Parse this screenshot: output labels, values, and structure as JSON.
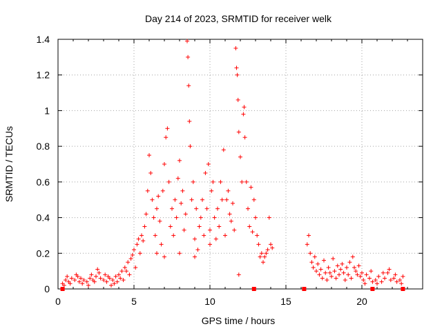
{
  "chart_data": {
    "type": "scatter",
    "title": "Day 214 of 2023, SRMTID for receiver welk",
    "xlabel": "GPS time / hours",
    "ylabel": "SRMTID / TECUs",
    "xlim": [
      0,
      24
    ],
    "ylim": [
      0,
      1.4
    ],
    "xticks": [
      0,
      5,
      10,
      15,
      20
    ],
    "xtick_labels": [
      "0",
      "5",
      "10",
      "15",
      "20"
    ],
    "yticks": [
      0,
      0.2,
      0.4,
      0.6,
      0.8,
      1.0,
      1.2,
      1.4
    ],
    "ytick_labels": [
      "0",
      "0.2",
      "0.4",
      "0.6",
      "0.8",
      "1",
      "1.2",
      "1.4"
    ],
    "grid": true,
    "marker": "+",
    "colors": {
      "points": "#ff0000",
      "grid": "#a0a0a0",
      "axes": "#000000"
    },
    "series": [
      {
        "name": "SRMTID",
        "points": [
          [
            0.3,
            0.03
          ],
          [
            0.5,
            0.05
          ],
          [
            0.7,
            0.04
          ],
          [
            0.9,
            0.06
          ],
          [
            1.1,
            0.05
          ],
          [
            1.3,
            0.07
          ],
          [
            1.5,
            0.06
          ],
          [
            1.7,
            0.05
          ],
          [
            1.9,
            0.04
          ],
          [
            2.1,
            0.06
          ],
          [
            2.3,
            0.05
          ],
          [
            2.5,
            0.07
          ],
          [
            2.6,
            0.11
          ],
          [
            2.7,
            0.09
          ],
          [
            2.8,
            0.06
          ],
          [
            3.0,
            0.05
          ],
          [
            3.2,
            0.04
          ],
          [
            3.4,
            0.06
          ],
          [
            3.6,
            0.05
          ],
          [
            3.8,
            0.07
          ],
          [
            4.0,
            0.08
          ],
          [
            4.2,
            0.1
          ],
          [
            4.4,
            0.12
          ],
          [
            4.6,
            0.15
          ],
          [
            4.8,
            0.17
          ],
          [
            4.9,
            0.19
          ],
          [
            5.0,
            0.22
          ],
          [
            5.2,
            0.25
          ],
          [
            5.3,
            0.28
          ],
          [
            5.5,
            0.3
          ],
          [
            5.7,
            0.35
          ],
          [
            5.8,
            0.42
          ],
          [
            5.9,
            0.55
          ],
          [
            6.0,
            0.75
          ],
          [
            6.1,
            0.65
          ],
          [
            6.2,
            0.5
          ],
          [
            6.3,
            0.4
          ],
          [
            6.5,
            0.45
          ],
          [
            6.7,
            0.38
          ],
          [
            6.9,
            0.55
          ],
          [
            7.0,
            0.7
          ],
          [
            7.1,
            0.85
          ],
          [
            7.2,
            0.9
          ],
          [
            7.3,
            0.6
          ],
          [
            7.5,
            0.45
          ],
          [
            7.7,
            0.5
          ],
          [
            7.9,
            0.62
          ],
          [
            8.0,
            0.72
          ],
          [
            8.2,
            0.55
          ],
          [
            8.4,
            0.42
          ],
          [
            8.5,
            1.39
          ],
          [
            8.55,
            1.3
          ],
          [
            8.6,
            1.14
          ],
          [
            8.65,
            0.94
          ],
          [
            8.7,
            0.8
          ],
          [
            8.9,
            0.6
          ],
          [
            9.1,
            0.45
          ],
          [
            9.3,
            0.35
          ],
          [
            9.5,
            0.5
          ],
          [
            9.7,
            0.65
          ],
          [
            9.9,
            0.7
          ],
          [
            10.1,
            0.55
          ],
          [
            10.3,
            0.4
          ],
          [
            10.5,
            0.45
          ],
          [
            10.7,
            0.6
          ],
          [
            10.9,
            0.78
          ],
          [
            11.1,
            0.5
          ],
          [
            11.3,
            0.42
          ],
          [
            11.5,
            0.48
          ],
          [
            11.7,
            1.35
          ],
          [
            11.75,
            1.24
          ],
          [
            11.8,
            1.2
          ],
          [
            11.85,
            1.06
          ],
          [
            11.9,
            0.88
          ],
          [
            12.0,
            0.74
          ],
          [
            12.1,
            0.6
          ],
          [
            12.2,
            0.98
          ],
          [
            12.25,
            1.02
          ],
          [
            12.3,
            0.85
          ],
          [
            12.4,
            0.6
          ],
          [
            12.5,
            0.45
          ],
          [
            12.7,
            0.57
          ],
          [
            12.9,
            0.5
          ],
          [
            13.0,
            0.4
          ],
          [
            13.1,
            0.3
          ],
          [
            13.2,
            0.25
          ],
          [
            13.4,
            0.2
          ],
          [
            13.6,
            0.18
          ],
          [
            13.8,
            0.22
          ],
          [
            13.9,
            0.4
          ],
          [
            14.0,
            0.25
          ],
          [
            14.1,
            0.23
          ],
          [
            5.4,
            0.2
          ],
          [
            5.6,
            0.27
          ],
          [
            6.4,
            0.3
          ],
          [
            6.6,
            0.52
          ],
          [
            6.8,
            0.25
          ],
          [
            7.4,
            0.35
          ],
          [
            7.6,
            0.3
          ],
          [
            7.8,
            0.4
          ],
          [
            8.1,
            0.48
          ],
          [
            8.3,
            0.33
          ],
          [
            8.8,
            0.5
          ],
          [
            9.0,
            0.28
          ],
          [
            9.2,
            0.22
          ],
          [
            9.4,
            0.4
          ],
          [
            9.6,
            0.3
          ],
          [
            9.8,
            0.45
          ],
          [
            10.0,
            0.33
          ],
          [
            10.2,
            0.6
          ],
          [
            10.4,
            0.28
          ],
          [
            10.6,
            0.35
          ],
          [
            10.8,
            0.5
          ],
          [
            11.0,
            0.3
          ],
          [
            11.2,
            0.55
          ],
          [
            11.4,
            0.38
          ],
          [
            11.6,
            0.33
          ],
          [
            12.6,
            0.35
          ],
          [
            12.8,
            0.32
          ],
          [
            13.3,
            0.18
          ],
          [
            13.5,
            0.15
          ],
          [
            13.7,
            0.2
          ],
          [
            11.9,
            0.08
          ],
          [
            6.5,
            0.2
          ],
          [
            7.0,
            0.18
          ],
          [
            8.0,
            0.2
          ],
          [
            9.0,
            0.18
          ],
          [
            10.0,
            0.25
          ],
          [
            16.4,
            0.25
          ],
          [
            16.5,
            0.3
          ],
          [
            16.6,
            0.2
          ],
          [
            16.7,
            0.15
          ],
          [
            16.8,
            0.12
          ],
          [
            17.0,
            0.1
          ],
          [
            17.2,
            0.08
          ],
          [
            17.4,
            0.06
          ],
          [
            17.6,
            0.09
          ],
          [
            17.8,
            0.12
          ],
          [
            18.0,
            0.07
          ],
          [
            18.2,
            0.1
          ],
          [
            18.4,
            0.13
          ],
          [
            18.6,
            0.11
          ],
          [
            18.8,
            0.09
          ],
          [
            19.0,
            0.12
          ],
          [
            19.2,
            0.15
          ],
          [
            19.4,
            0.18
          ],
          [
            19.6,
            0.1
          ],
          [
            19.8,
            0.13
          ],
          [
            19.9,
            0.07
          ],
          [
            20.1,
            0.05
          ],
          [
            20.3,
            0.08
          ],
          [
            20.5,
            0.06
          ],
          [
            20.7,
            0.04
          ],
          [
            20.9,
            0.05
          ],
          [
            21.1,
            0.07
          ],
          [
            21.3,
            0.04
          ],
          [
            21.5,
            0.06
          ],
          [
            21.7,
            0.09
          ],
          [
            21.9,
            0.05
          ],
          [
            22.1,
            0.06
          ],
          [
            22.3,
            0.04
          ],
          [
            22.5,
            0.05
          ],
          [
            22.7,
            0.07
          ],
          [
            16.9,
            0.18
          ],
          [
            17.1,
            0.14
          ],
          [
            17.3,
            0.11
          ],
          [
            17.5,
            0.16
          ],
          [
            17.7,
            0.05
          ],
          [
            17.9,
            0.09
          ],
          [
            18.1,
            0.17
          ],
          [
            18.3,
            0.06
          ],
          [
            18.5,
            0.08
          ],
          [
            18.7,
            0.14
          ],
          [
            18.9,
            0.05
          ],
          [
            19.1,
            0.08
          ],
          [
            19.3,
            0.06
          ],
          [
            19.5,
            0.12
          ],
          [
            19.7,
            0.08
          ],
          [
            20.0,
            0.09
          ],
          [
            20.2,
            0.03
          ],
          [
            20.6,
            0.1
          ],
          [
            21.0,
            0.03
          ],
          [
            21.4,
            0.09
          ],
          [
            21.8,
            0.11
          ],
          [
            22.2,
            0.08
          ],
          [
            22.6,
            0.03
          ],
          [
            0.4,
            0.02
          ],
          [
            0.8,
            0.03
          ],
          [
            1.2,
            0.08
          ],
          [
            1.6,
            0.03
          ],
          [
            2.0,
            0.02
          ],
          [
            2.4,
            0.04
          ],
          [
            3.1,
            0.08
          ],
          [
            3.5,
            0.02
          ],
          [
            3.9,
            0.04
          ],
          [
            4.3,
            0.05
          ],
          [
            4.7,
            0.08
          ],
          [
            5.1,
            0.12
          ],
          [
            0.6,
            0.07
          ],
          [
            1.4,
            0.04
          ],
          [
            2.2,
            0.08
          ],
          [
            3.3,
            0.07
          ],
          [
            3.7,
            0.03
          ],
          [
            4.1,
            0.06
          ],
          [
            4.5,
            0.1
          ]
        ]
      }
    ],
    "baseline_markers_x": [
      0.3,
      12.9,
      16.2,
      20.7,
      22.7
    ]
  }
}
